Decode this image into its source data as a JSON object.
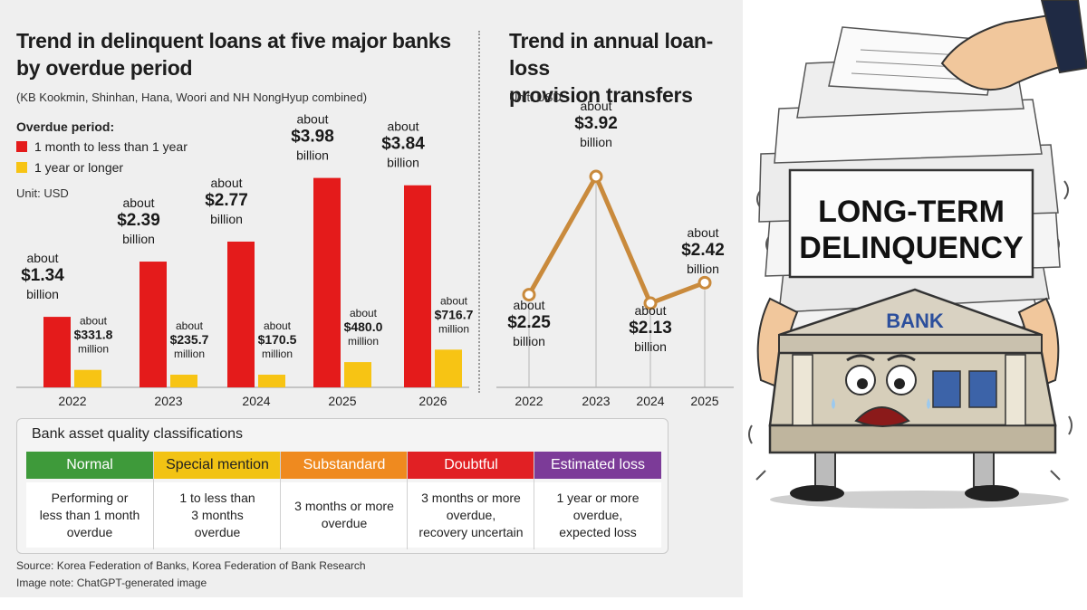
{
  "chart_data": [
    {
      "type": "bar",
      "title": "Trend in delinquent loans at five major banks\nby overdue period",
      "subtitle": "(KB Kookmin, Shinhan, Hana, Woori and NH NongHyup combined)",
      "legend_title": "Overdue period:",
      "unit": "Unit: USD",
      "categories": [
        "2022",
        "2023",
        "2024",
        "2025",
        "2026"
      ],
      "series": [
        {
          "name": "1 month to less than 1 year",
          "color": "#e41b1b",
          "values": [
            1.34,
            2.39,
            2.77,
            3.98,
            3.84
          ],
          "labels": [
            [
              "about",
              "$1.34",
              "billion"
            ],
            [
              "about",
              "$2.39",
              "billion"
            ],
            [
              "about",
              "$2.77",
              "billion"
            ],
            [
              "about",
              "$3.98",
              "billion"
            ],
            [
              "about",
              "$3.84",
              "billion"
            ]
          ]
        },
        {
          "name": "1 year or longer",
          "color": "#f7c414",
          "values": [
            0.3318,
            0.2357,
            0.1705,
            0.48,
            0.7167
          ],
          "labels": [
            [
              "about",
              "$331.8",
              "million"
            ],
            [
              "about",
              "$235.7",
              "million"
            ],
            [
              "about",
              "$170.5",
              "million"
            ],
            [
              "about",
              "$480.0",
              "million"
            ],
            [
              "about",
              "$716.7",
              "million"
            ]
          ]
        }
      ],
      "unit_scale": "billion USD",
      "ylim": [
        0,
        4.3
      ],
      "legend_position": "top-left"
    },
    {
      "type": "line",
      "title": "Trend in annual loan-loss\nprovision transfers",
      "unit": "Unit: USD",
      "x": [
        "2022",
        "2023",
        "2024",
        "2025"
      ],
      "values": [
        2.25,
        3.92,
        2.13,
        2.42
      ],
      "labels": [
        [
          "about",
          "$2.25",
          "billion"
        ],
        [
          "about",
          "$3.92",
          "billion"
        ],
        [
          "about",
          "$2.13",
          "billion"
        ],
        [
          "about",
          "$2.42",
          "billion"
        ]
      ],
      "color": "#c98a3c",
      "unit_scale": "billion USD",
      "ylim": [
        1.8,
        4.3
      ]
    }
  ],
  "quality": {
    "title": "Bank asset quality classifications",
    "classes": [
      {
        "name": "Normal",
        "color": "#3e9a3a",
        "text_color": "#ffffff",
        "desc": "Performing or\nless than 1 month\noverdue"
      },
      {
        "name": "Special mention",
        "color": "#f2c314",
        "text_color": "#222222",
        "desc": "1 to less than\n3 months\noverdue"
      },
      {
        "name": "Substandard",
        "color": "#ef8a1f",
        "text_color": "#ffffff",
        "desc": "3 months or more\noverdue"
      },
      {
        "name": "Doubtful",
        "color": "#e12024",
        "text_color": "#ffffff",
        "desc": "3 months or more\noverdue,\nrecovery uncertain"
      },
      {
        "name": "Estimated loss",
        "color": "#7c3b98",
        "text_color": "#ffffff",
        "desc": "1 year or more\noverdue,\nexpected loss"
      }
    ]
  },
  "footer": {
    "source": "Source: Korea Federation of Banks, Korea Federation of Bank Research",
    "note": "Image note: ChatGPT-generated image"
  },
  "illustration": {
    "sign": [
      "LONG-TERM",
      "DELINQUENCY"
    ],
    "building_label": "BANK"
  }
}
